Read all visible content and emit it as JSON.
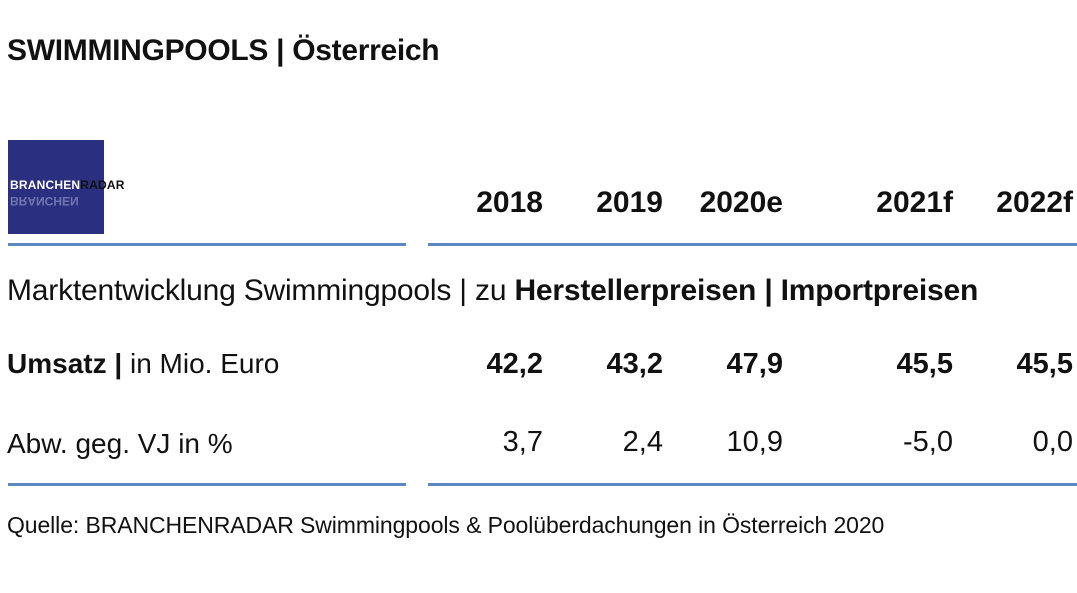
{
  "title": "SWIMMINGPOOLS | Österreich",
  "logo": {
    "part1": "BRANCHEN",
    "part2": "RADAR"
  },
  "chart_data": {
    "type": "table",
    "title": "SWIMMINGPOOLS | Österreich",
    "subtitle_plain": "Marktentwicklung Swimmingpools | zu ",
    "subtitle_bold": "Herstellerpreisen | Importpreisen",
    "columns": [
      "2018",
      "2019",
      "2020e",
      "2021f",
      "2022f"
    ],
    "rows": [
      {
        "label_bold": "Umsatz |",
        "label_plain": " in Mio. Euro",
        "values": [
          "42,2",
          "43,2",
          "47,9",
          "45,5",
          "45,5"
        ]
      },
      {
        "label_bold": "",
        "label_plain": "Abw. geg. VJ in %",
        "values": [
          "3,7",
          "2,4",
          "10,9",
          "-5,0",
          "0,0"
        ]
      }
    ],
    "source": "Quelle: BRANCHENRADAR Swimmingpools & Poolüberdachungen in Österreich 2020"
  }
}
